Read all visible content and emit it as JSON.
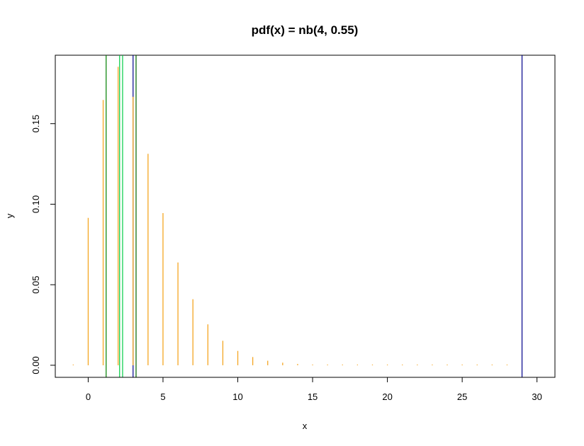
{
  "chart_data": {
    "type": "bar",
    "title": "pdf(x) = nb(4, 0.55)",
    "xlabel": "x",
    "ylabel": "y",
    "xlim": [
      -2.2,
      31.2
    ],
    "ylim": [
      -0.0075,
      0.1925
    ],
    "xticks": [
      0,
      5,
      10,
      15,
      20,
      25,
      30
    ],
    "yticks": [
      0.0,
      0.05,
      0.1,
      0.15
    ],
    "ytick_labels": [
      "0.00",
      "0.05",
      "0.10",
      "0.15"
    ],
    "grid": false,
    "legend": "none",
    "series": [
      {
        "style": "pmf-spikes",
        "color": "#f5a623",
        "x": [
          -1,
          0,
          1,
          2,
          3,
          4,
          5,
          6,
          7,
          8,
          9,
          10,
          11,
          12,
          13,
          14,
          15,
          16,
          17,
          18,
          19,
          20,
          21,
          22,
          23,
          24,
          25,
          26,
          27,
          28
        ],
        "values": [
          0,
          0.0915,
          0.1647,
          0.1853,
          0.1667,
          0.1313,
          0.0945,
          0.0638,
          0.041,
          0.0254,
          0.0152,
          0.0089,
          0.0051,
          0.0028,
          0.0016,
          0.0008,
          0.0004,
          0.0002,
          0.0001,
          0.0001,
          0,
          0,
          0,
          0,
          0,
          0,
          0,
          0,
          0,
          0
        ]
      }
    ],
    "vlines": [
      {
        "x": 1.2,
        "color": "#008000"
      },
      {
        "x": 2.1,
        "color": "#00cc44"
      },
      {
        "x": 2.3,
        "color": "#00cc44"
      },
      {
        "x": 3.0,
        "color": "#00008b"
      },
      {
        "x": 3.2,
        "color": "#006400"
      },
      {
        "x": 29.0,
        "color": "#00008b"
      }
    ]
  }
}
